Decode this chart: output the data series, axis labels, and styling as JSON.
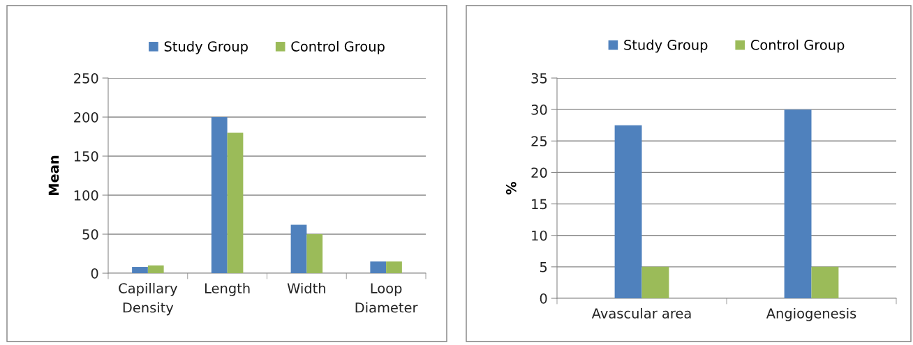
{
  "chart_data": [
    {
      "type": "bar",
      "categories": [
        "Capillary\nDensity",
        "Length",
        "Width",
        "Loop\nDiameter"
      ],
      "ylabel": "Mean",
      "ylim": [
        0,
        250
      ],
      "yticks": [
        0,
        50,
        100,
        150,
        200,
        250
      ],
      "grid": "y",
      "legend": "top",
      "series": [
        {
          "name": "Study Group",
          "color": "#4f81bd",
          "values": [
            8,
            200,
            62,
            15
          ]
        },
        {
          "name": "Control Group",
          "color": "#9bbb59",
          "values": [
            10,
            180,
            50,
            15
          ]
        }
      ]
    },
    {
      "type": "bar",
      "categories": [
        "Avascular area",
        "Angiogenesis"
      ],
      "ylabel": "%",
      "ylim": [
        0,
        35
      ],
      "yticks": [
        0,
        5,
        10,
        15,
        20,
        25,
        30,
        35
      ],
      "grid": "y",
      "legend": "top",
      "series": [
        {
          "name": "Study Group",
          "color": "#4f81bd",
          "values": [
            27.5,
            30
          ]
        },
        {
          "name": "Control Group",
          "color": "#9bbb59",
          "values": [
            5,
            5
          ]
        }
      ]
    }
  ]
}
